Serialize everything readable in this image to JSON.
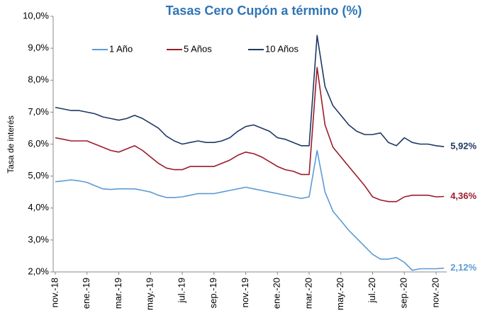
{
  "chart_data": {
    "type": "line",
    "title": "Tasas Cero Cupón a término (%)",
    "y_label": "Tasa de interés",
    "categories": [
      "nov.-18",
      null,
      null,
      null,
      "ene.-19",
      null,
      null,
      null,
      "mar.-19",
      null,
      null,
      null,
      "may.-19",
      null,
      null,
      null,
      "jul.-19",
      null,
      null,
      null,
      "sep.-19",
      null,
      null,
      null,
      "nov.-19",
      null,
      null,
      null,
      "ene.-20",
      null,
      null,
      null,
      "mar.-20",
      null,
      null,
      null,
      "may.-20",
      null,
      null,
      null,
      "jul.-20",
      null,
      null,
      null,
      "sep.-20",
      null,
      null,
      null,
      "nov.-20",
      null
    ],
    "ylim": [
      2,
      10
    ],
    "yticks": [
      {
        "value": 2,
        "label": "2,0%"
      },
      {
        "value": 3,
        "label": "3,0%"
      },
      {
        "value": 4,
        "label": "4,0%"
      },
      {
        "value": 5,
        "label": "5,0%"
      },
      {
        "value": 6,
        "label": "6,0%"
      },
      {
        "value": 7,
        "label": "7,0%"
      },
      {
        "value": 8,
        "label": "8,0%"
      },
      {
        "value": 9,
        "label": "9,0%"
      },
      {
        "value": 10,
        "label": "10,0%"
      }
    ],
    "grid": false,
    "legend": "top-left",
    "series": [
      {
        "name": "1 Año",
        "color": "#5b9bd5",
        "values": [
          4.82,
          4.85,
          4.88,
          4.85,
          4.8,
          4.7,
          4.6,
          4.58,
          4.6,
          4.6,
          4.6,
          4.55,
          4.5,
          4.4,
          4.33,
          4.33,
          4.35,
          4.4,
          4.45,
          4.45,
          4.45,
          4.5,
          4.55,
          4.6,
          4.65,
          4.6,
          4.55,
          4.5,
          4.45,
          4.4,
          4.35,
          4.3,
          4.35,
          5.8,
          4.5,
          3.9,
          3.6,
          3.3,
          3.05,
          2.8,
          2.55,
          2.4,
          2.4,
          2.45,
          2.3,
          2.05,
          2.1,
          2.1,
          2.1,
          2.12
        ],
        "value_labels": [
          null,
          null,
          null,
          null,
          null,
          null,
          null,
          null,
          null,
          null,
          null,
          null,
          null,
          null,
          null,
          null,
          null,
          null,
          null,
          null,
          null,
          null,
          null,
          null,
          null,
          null,
          null,
          null,
          null,
          null,
          null,
          null,
          null,
          null,
          null,
          null,
          null,
          null,
          null,
          null,
          null,
          null,
          null,
          null,
          null,
          null,
          null,
          null,
          null,
          "2,12%"
        ]
      },
      {
        "name": "5 Años",
        "color": "#9b1b2a",
        "values": [
          6.2,
          6.15,
          6.1,
          6.1,
          6.1,
          6.0,
          5.9,
          5.8,
          5.75,
          5.85,
          5.95,
          5.8,
          5.6,
          5.4,
          5.25,
          5.2,
          5.2,
          5.3,
          5.3,
          5.3,
          5.3,
          5.4,
          5.5,
          5.65,
          5.75,
          5.7,
          5.6,
          5.45,
          5.3,
          5.2,
          5.15,
          5.05,
          5.05,
          8.4,
          6.6,
          5.9,
          5.6,
          5.3,
          5.0,
          4.7,
          4.35,
          4.25,
          4.2,
          4.2,
          4.35,
          4.4,
          4.4,
          4.4,
          4.35,
          4.36
        ],
        "value_labels": [
          null,
          null,
          null,
          null,
          null,
          null,
          null,
          null,
          null,
          null,
          null,
          null,
          null,
          null,
          null,
          null,
          null,
          null,
          null,
          null,
          null,
          null,
          null,
          null,
          null,
          null,
          null,
          null,
          null,
          null,
          null,
          null,
          null,
          null,
          null,
          null,
          null,
          null,
          null,
          null,
          null,
          null,
          null,
          null,
          null,
          null,
          null,
          null,
          null,
          "4,36%"
        ]
      },
      {
        "name": "10 Años",
        "color": "#1f3864",
        "values": [
          7.15,
          7.1,
          7.05,
          7.05,
          7.0,
          6.95,
          6.85,
          6.8,
          6.75,
          6.8,
          6.9,
          6.8,
          6.65,
          6.5,
          6.25,
          6.1,
          6.0,
          6.05,
          6.1,
          6.05,
          6.05,
          6.1,
          6.2,
          6.4,
          6.55,
          6.6,
          6.5,
          6.4,
          6.2,
          6.15,
          6.05,
          5.95,
          5.95,
          9.4,
          7.8,
          7.2,
          6.9,
          6.6,
          6.4,
          6.3,
          6.3,
          6.35,
          6.05,
          5.95,
          6.2,
          6.05,
          6.0,
          6.0,
          5.95,
          5.92
        ],
        "value_labels": [
          null,
          null,
          null,
          null,
          null,
          null,
          null,
          null,
          null,
          null,
          null,
          null,
          null,
          null,
          null,
          null,
          null,
          null,
          null,
          null,
          null,
          null,
          null,
          null,
          null,
          null,
          null,
          null,
          null,
          null,
          null,
          null,
          null,
          null,
          null,
          null,
          null,
          null,
          null,
          null,
          null,
          null,
          null,
          null,
          null,
          null,
          null,
          null,
          null,
          "5,92%"
        ]
      }
    ]
  }
}
